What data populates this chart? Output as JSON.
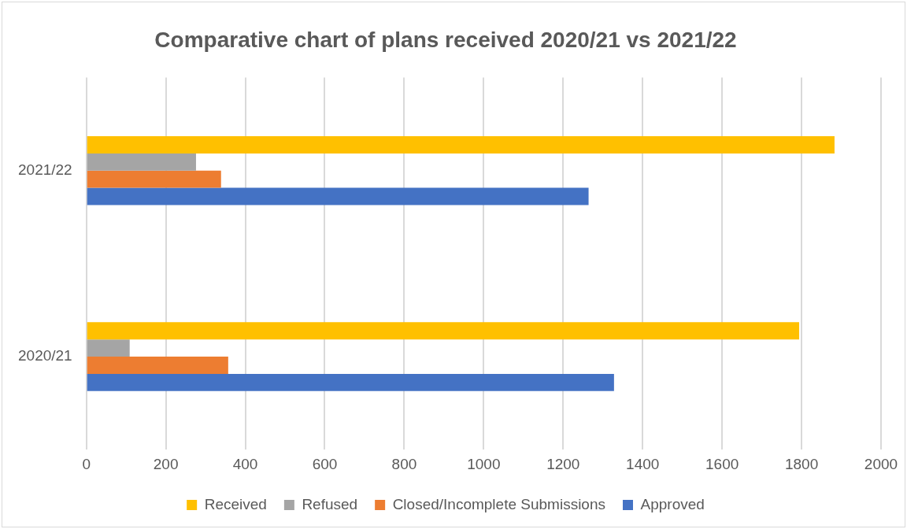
{
  "chart_data": {
    "type": "bar",
    "orientation": "horizontal",
    "title": "Comparative chart of plans received 2020/21 vs 2021/22",
    "categories": [
      "2021/22",
      "2020/21"
    ],
    "series": [
      {
        "name": "Received",
        "color": "#ffc000",
        "values": [
          1883,
          1794
        ]
      },
      {
        "name": "Refused",
        "color": "#a5a5a5",
        "values": [
          276,
          109
        ]
      },
      {
        "name": "Closed/Incomplete Submissions",
        "color": "#ed7d31",
        "values": [
          339,
          357
        ]
      },
      {
        "name": "Approved",
        "color": "#4472c4",
        "values": [
          1264,
          1328
        ]
      }
    ],
    "xlim": [
      0,
      2000
    ],
    "xticks": [
      0,
      200,
      400,
      600,
      800,
      1000,
      1200,
      1400,
      1600,
      1800,
      2000
    ],
    "grid": "x",
    "legend": "bottom"
  }
}
